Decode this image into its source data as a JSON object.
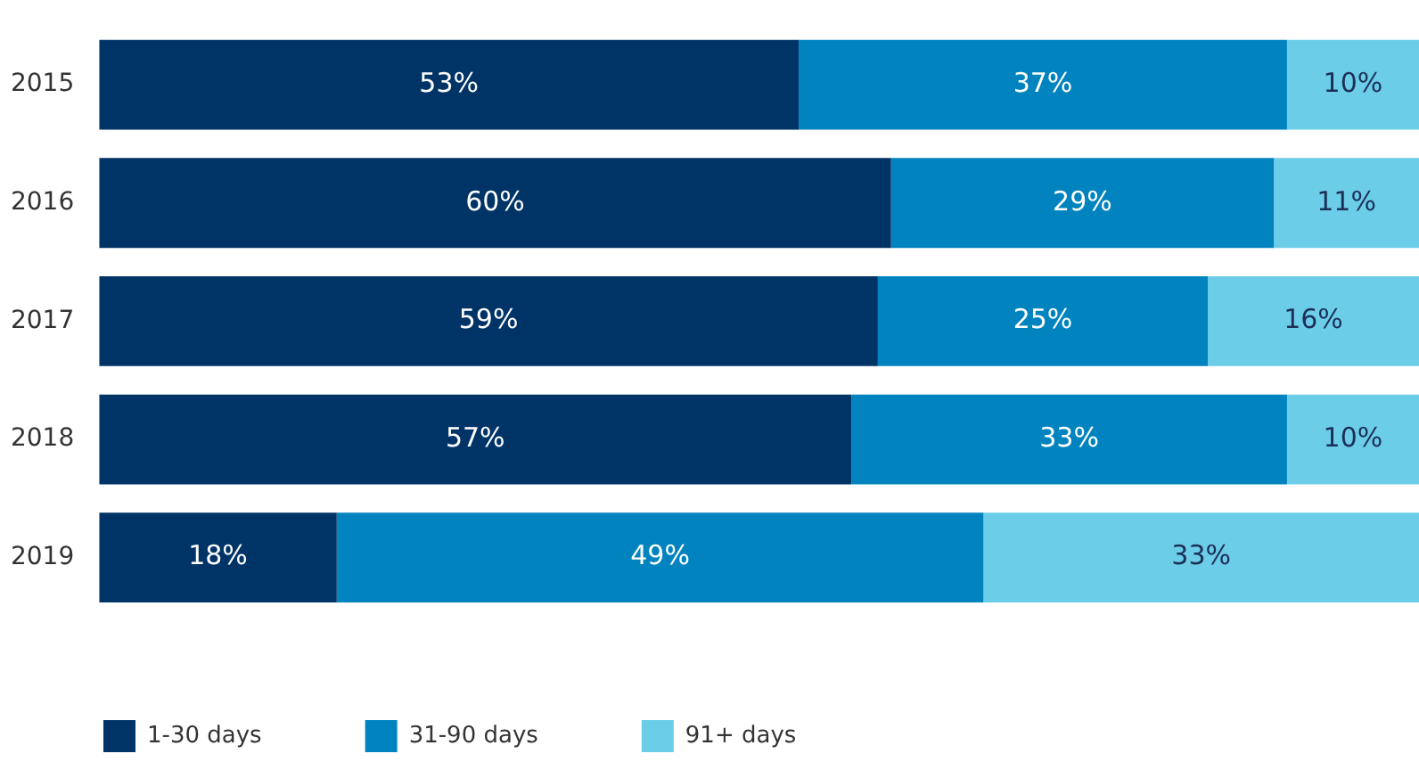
{
  "chart_data": {
    "type": "bar",
    "orientation": "horizontal",
    "stacked": true,
    "categories": [
      "2015",
      "2016",
      "2017",
      "2018",
      "2019"
    ],
    "xlim": [
      0,
      100
    ],
    "tick_labels": "y",
    "legend": "bottom left",
    "series": [
      {
        "name": "1-30 days",
        "color": "#003466",
        "values": [
          53,
          60,
          59,
          57,
          18
        ],
        "value_labels": [
          "53%",
          "60%",
          "59%",
          "57%",
          "18%"
        ]
      },
      {
        "name": "31-90 days",
        "color": "#0083be",
        "values": [
          37,
          29,
          25,
          33,
          49
        ],
        "value_labels": [
          "37%",
          "29%",
          "25%",
          "33%",
          "49%"
        ]
      },
      {
        "name": "91+ days",
        "color": "#6ccde9",
        "values": [
          10,
          11,
          16,
          10,
          33
        ],
        "value_labels": [
          "10%",
          "11%",
          "16%",
          "10%",
          "33%"
        ]
      }
    ]
  }
}
